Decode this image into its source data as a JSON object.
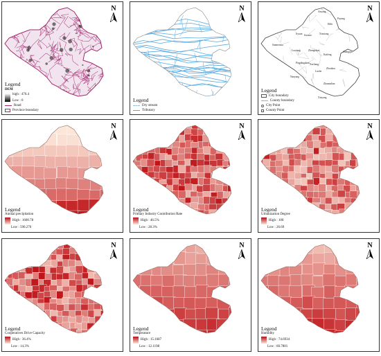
{
  "panels": [
    {
      "legend_title": "Legend",
      "dem_title": "DEM",
      "high": "high : 476.4",
      "low": "Low : 0",
      "road": "Road",
      "province": "Province boundary"
    },
    {
      "legend_title": "Legend",
      "dry": "Dry stream",
      "tributary": "Tributary"
    },
    {
      "legend_title": "Legend",
      "city_boundary": "City boundary",
      "county_boundary": "County boundary",
      "city_point": "City Point",
      "county_point": "County Point",
      "cities": [
        "Anyang",
        "Puyang",
        "Hebi",
        "Xinxiang",
        "Jiaozuo",
        "Jiyuan",
        "Sanmenxia",
        "Luoyang",
        "Zhengzhou",
        "Kaifeng",
        "Shangqiu",
        "Xuchang",
        "Pingdingshan",
        "Zhoukou",
        "Luohe",
        "Nanyang",
        "Zhumadian",
        "Xinyang"
      ]
    },
    {
      "legend_title": "Legend",
      "var": "Annual precipitation",
      "high": "High : 1600.78",
      "low": "Low : 590.276"
    },
    {
      "legend_title": "Legend",
      "var": "Primary Industry Contribution Rate",
      "high": "High : 46.5%",
      "low": "Low : 28.3%"
    },
    {
      "legend_title": "Legend",
      "var": "Urbanization Degree",
      "high": "High : 100",
      "low": "Low : 26.69"
    },
    {
      "legend_title": "Legend",
      "var": "Cooperatives Drive Capacity",
      "high": "High : 36.4%",
      "low": "Low : 14.3%"
    },
    {
      "legend_title": "Legend",
      "var": "Temperature",
      "high": "High : 15.1687",
      "low": "Low : 12.1198"
    },
    {
      "legend_title": "Legend",
      "var": "Humidity",
      "high": "High : 74.6934",
      "low": "Low : 60.7801"
    }
  ],
  "north_label": "N",
  "colors": {
    "choro_high": "#c0151a",
    "choro_low": "#fbe6d8",
    "dem_road": "#a3286e",
    "river": "#55a8e0",
    "frame": "#333333"
  }
}
